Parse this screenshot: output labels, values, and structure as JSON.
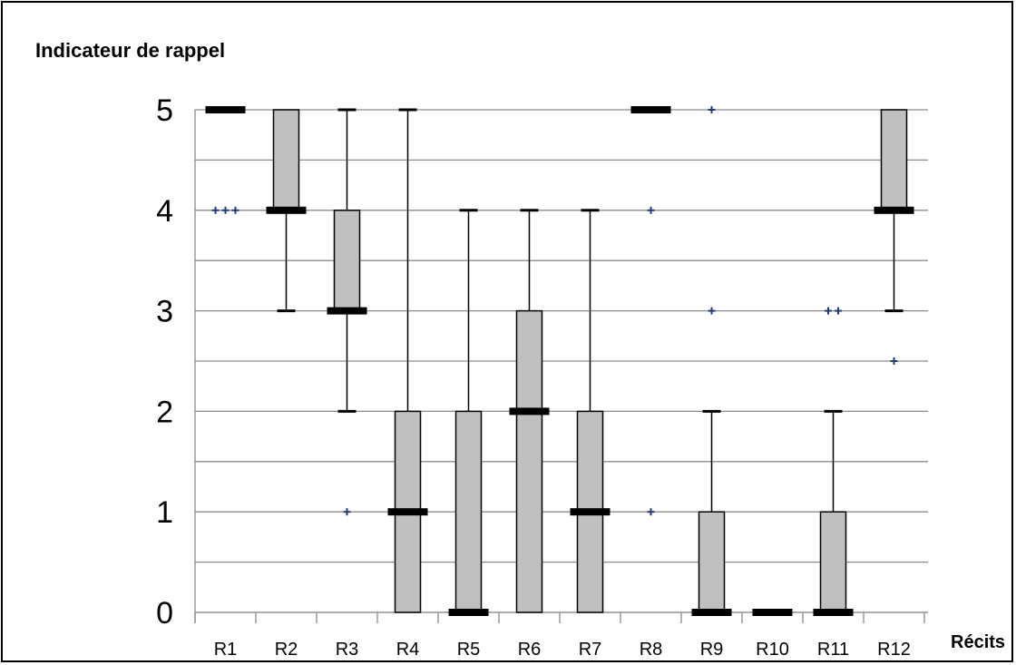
{
  "chart_data": {
    "type": "box",
    "ylabel": "Indicateur de rappel",
    "xlabel": "Récits",
    "ylim": [
      0,
      5
    ],
    "yticks": [
      "0",
      "1",
      "2",
      "3",
      "4",
      "5"
    ],
    "grid": true,
    "categories": [
      "R1",
      "R2",
      "R3",
      "R4",
      "R5",
      "R6",
      "R7",
      "R8",
      "R9",
      "R10",
      "R11",
      "R12"
    ],
    "boxes": [
      {
        "label": "R1",
        "min": 5,
        "q1": 5,
        "median": 5,
        "q3": 5,
        "max": 5,
        "outliers": [
          4,
          4,
          4
        ]
      },
      {
        "label": "R2",
        "min": 3,
        "q1": 4,
        "median": 4,
        "q3": 5,
        "max": 5,
        "outliers": []
      },
      {
        "label": "R3",
        "min": 2,
        "q1": 3,
        "median": 3,
        "q3": 4,
        "max": 5,
        "outliers": [
          1
        ]
      },
      {
        "label": "R4",
        "min": 0,
        "q1": 0,
        "median": 1,
        "q3": 2,
        "max": 5,
        "outliers": []
      },
      {
        "label": "R5",
        "min": 0,
        "q1": 0,
        "median": 0,
        "q3": 2,
        "max": 4,
        "outliers": []
      },
      {
        "label": "R6",
        "min": 0,
        "q1": 0,
        "median": 2,
        "q3": 3,
        "max": 4,
        "outliers": []
      },
      {
        "label": "R7",
        "min": 0,
        "q1": 0,
        "median": 1,
        "q3": 2,
        "max": 4,
        "outliers": []
      },
      {
        "label": "R8",
        "min": 5,
        "q1": 5,
        "median": 5,
        "q3": 5,
        "max": 5,
        "outliers": [
          4,
          1
        ]
      },
      {
        "label": "R9",
        "min": 0,
        "q1": 0,
        "median": 0,
        "q3": 1,
        "max": 2,
        "outliers": [
          5,
          3
        ]
      },
      {
        "label": "R10",
        "min": 0,
        "q1": 0,
        "median": 0,
        "q3": 0,
        "max": 0,
        "outliers": []
      },
      {
        "label": "R11",
        "min": 0,
        "q1": 0,
        "median": 0,
        "q3": 1,
        "max": 2,
        "outliers": [
          3,
          3
        ]
      },
      {
        "label": "R12",
        "min": 3,
        "q1": 4,
        "median": 4,
        "q3": 5,
        "max": 5,
        "outliers": [
          2.5
        ]
      }
    ],
    "colors": {
      "box_fill": "#c0c0c0",
      "stroke": "#000000",
      "grid": "#8c8c8c",
      "median": "#000000",
      "outlier": "#1f3d7a"
    }
  }
}
